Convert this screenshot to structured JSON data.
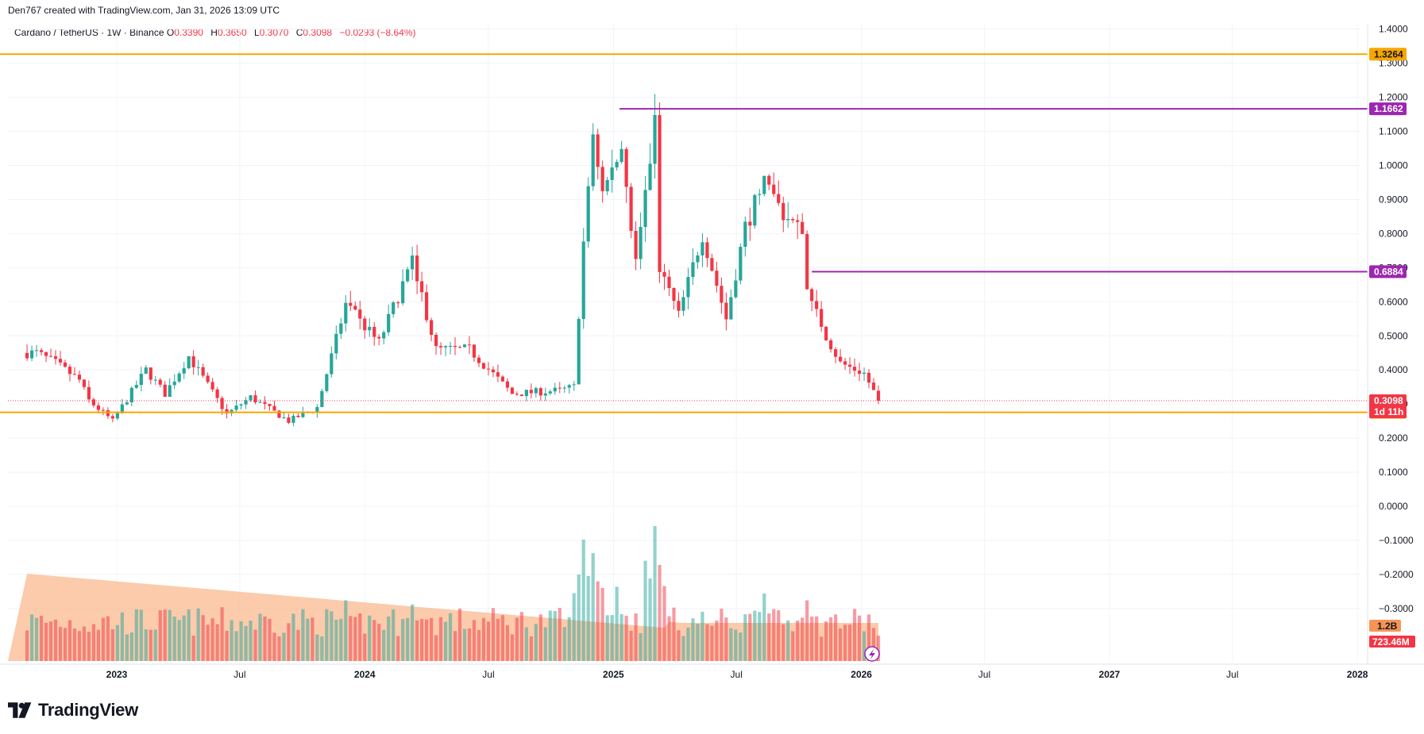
{
  "caption": "Den767 created with TradingView.com, Jan 31, 2026 13:09 UTC",
  "symbol": {
    "name": "Cardano / TetherUS · 1W · Binance",
    "o_label": "O",
    "o_value": "0.3390",
    "h_label": "H",
    "h_value": "0.3650",
    "l_label": "L",
    "l_value": "0.3070",
    "c_label": "C",
    "c_value": "0.3098",
    "change": "−0.0293 (−8.64%)"
  },
  "brand": "TradingView",
  "colors": {
    "up": "#26a69a",
    "down": "#f23645",
    "orange_level": "#f7a600",
    "purple_level": "#9c27b0",
    "volume_ma": "#f9b990",
    "price_tag": "#f23645"
  },
  "chart_data": {
    "type": "candlestick",
    "y_axis_ticks": [
      "1.4000",
      "1.3000",
      "1.2000",
      "1.1000",
      "1.0000",
      "0.9000",
      "0.8000",
      "0.7000",
      "0.6000",
      "0.5000",
      "0.4000",
      "0.3000",
      "0.2000",
      "0.1000",
      "0.0000",
      "−0.1000",
      "−0.2000",
      "−0.3000"
    ],
    "ylim": [
      -0.4,
      1.4
    ],
    "x_axis_labels": [
      {
        "label": "2023",
        "date": "2023-01-01",
        "bold": true
      },
      {
        "label": "Jul",
        "date": "2023-07-01",
        "bold": false
      },
      {
        "label": "2024",
        "date": "2024-01-01",
        "bold": true
      },
      {
        "label": "Jul",
        "date": "2024-07-01",
        "bold": false
      },
      {
        "label": "2025",
        "date": "2025-01-01",
        "bold": true
      },
      {
        "label": "Jul",
        "date": "2025-07-01",
        "bold": false
      },
      {
        "label": "2026",
        "date": "2026-01-01",
        "bold": true
      },
      {
        "label": "Jul",
        "date": "2026-07-01",
        "bold": false
      },
      {
        "label": "2027",
        "date": "2027-01-01",
        "bold": true
      },
      {
        "label": "Jul",
        "date": "2027-07-01",
        "bold": false
      },
      {
        "label": "2028",
        "date": "2028-01-01",
        "bold": true
      }
    ],
    "horizontal_levels": [
      {
        "value": 1.3264,
        "label": "1.3264",
        "color": "orange",
        "start_date": "2022-03-01"
      },
      {
        "value": 1.1662,
        "label": "1.1662",
        "color": "purple",
        "start_date": "2025-01-10"
      },
      {
        "value": 0.6884,
        "label": "0.6884",
        "color": "purple",
        "start_date": "2025-10-20"
      },
      {
        "value": 0.2756,
        "label": "0.2756",
        "color": "orange",
        "start_date": "2022-03-01"
      }
    ],
    "last_price": {
      "value": 0.3098,
      "label": "0.3098",
      "countdown": "1d 11h"
    },
    "volume_tags": {
      "ma_label": "1.2B",
      "volume_label": "723.46M"
    },
    "anchor_points": [
      [
        "2022-09-05",
        0.45
      ],
      [
        "2022-10-03",
        0.42
      ],
      [
        "2022-11-07",
        0.37
      ],
      [
        "2022-11-21",
        0.31
      ],
      [
        "2022-12-26",
        0.25
      ],
      [
        "2023-02-13",
        0.4
      ],
      [
        "2023-03-13",
        0.33
      ],
      [
        "2023-04-17",
        0.44
      ],
      [
        "2023-06-12",
        0.27
      ],
      [
        "2023-07-17",
        0.32
      ],
      [
        "2023-09-11",
        0.25
      ],
      [
        "2023-10-23",
        0.29
      ],
      [
        "2023-12-04",
        0.59
      ],
      [
        "2024-01-22",
        0.48
      ],
      [
        "2024-03-11",
        0.72
      ],
      [
        "2024-04-15",
        0.46
      ],
      [
        "2024-06-03",
        0.46
      ],
      [
        "2024-08-05",
        0.33
      ],
      [
        "2024-10-14",
        0.34
      ],
      [
        "2024-11-04",
        0.35
      ],
      [
        "2024-11-18",
        0.77
      ],
      [
        "2024-12-02",
        1.1
      ],
      [
        "2024-12-16",
        0.92
      ],
      [
        "2025-01-13",
        1.05
      ],
      [
        "2025-02-03",
        0.72
      ],
      [
        "2025-03-03",
        1.12
      ],
      [
        "2025-03-10",
        0.7
      ],
      [
        "2025-04-07",
        0.56
      ],
      [
        "2025-05-12",
        0.8
      ],
      [
        "2025-06-16",
        0.55
      ],
      [
        "2025-07-14",
        0.82
      ],
      [
        "2025-08-11",
        0.95
      ],
      [
        "2025-09-08",
        0.86
      ],
      [
        "2025-10-06",
        0.8
      ],
      [
        "2025-10-13",
        0.64
      ],
      [
        "2025-11-10",
        0.5
      ],
      [
        "2025-12-01",
        0.42
      ],
      [
        "2026-01-05",
        0.39
      ],
      [
        "2026-01-26",
        0.3098
      ]
    ],
    "volume_spikes": [
      [
        "2024-11-18",
        0.9
      ],
      [
        "2024-12-02",
        0.8
      ],
      [
        "2025-03-03",
        1.0
      ],
      [
        "2025-01-06",
        0.55
      ],
      [
        "2025-08-11",
        0.5
      ],
      [
        "2025-10-13",
        0.45
      ],
      [
        "2023-12-04",
        0.45
      ],
      [
        "2024-03-11",
        0.42
      ]
    ]
  }
}
